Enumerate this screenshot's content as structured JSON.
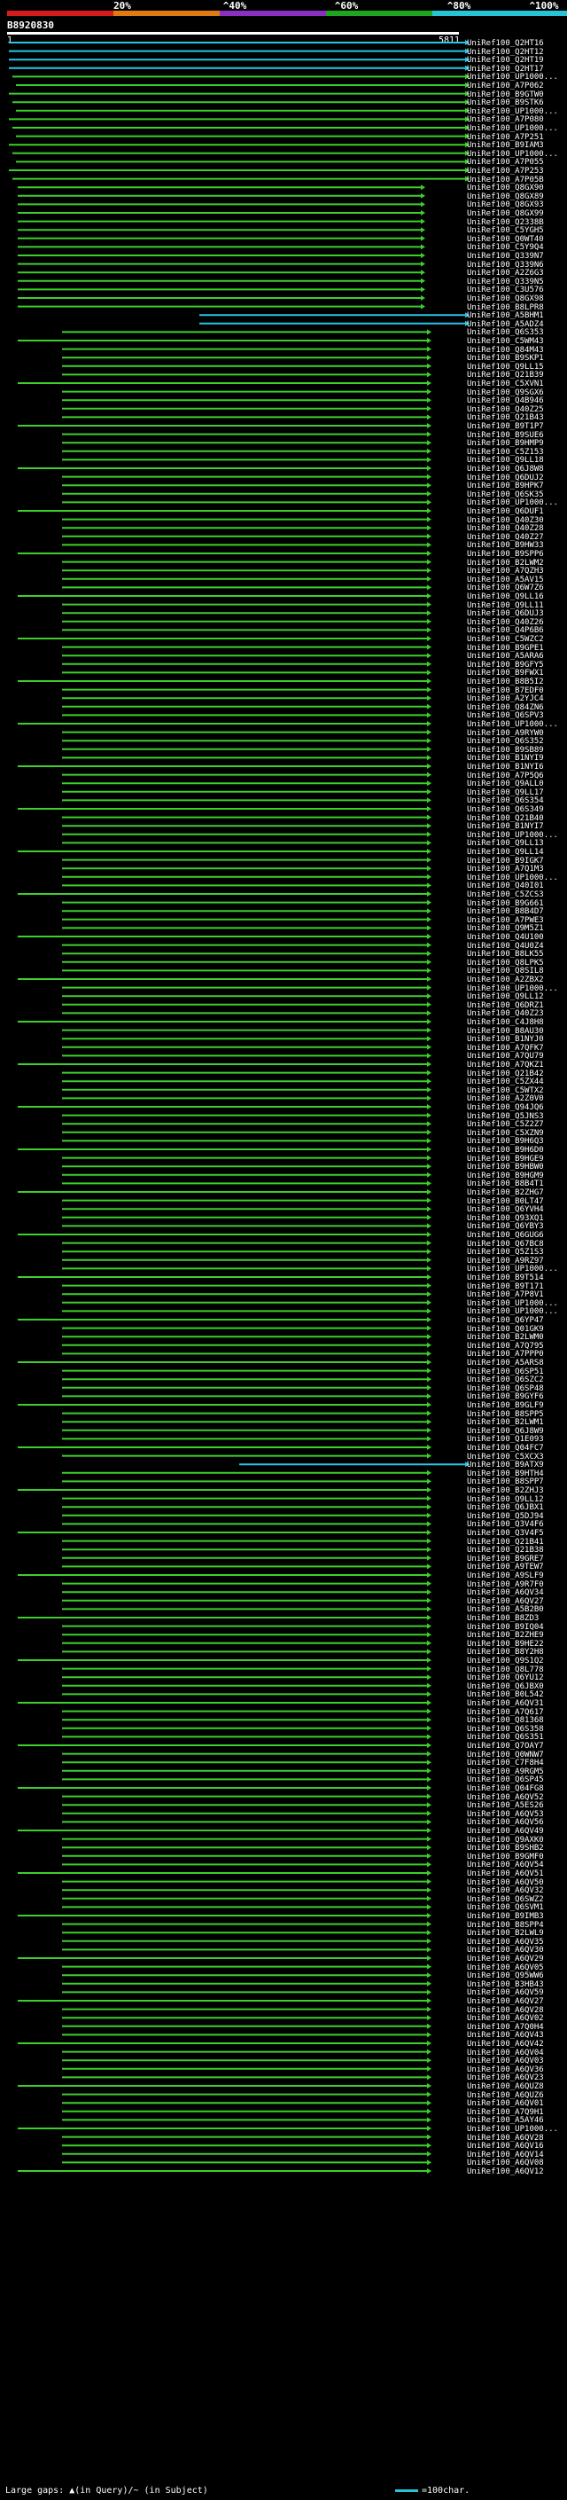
{
  "header": {
    "scale_ticks": [
      "20%",
      "^40%",
      "^60%",
      "^80%",
      "^100%"
    ],
    "scale_colors": [
      "#d51c1c",
      "#e07b14",
      "#8a2fbf",
      "#1fa51f",
      "#27c4d6"
    ],
    "query_id": "B8920830",
    "query_start": "1",
    "query_end": "5811"
  },
  "colors": {
    "hit_green": "#3ecf2c",
    "hit_cyan": "#29c5e8",
    "background": "#000000",
    "query_line": "#ffffff"
  },
  "hit_labels": [
    "UniRef100_Q2HT16",
    "UniRef100_Q2HT12",
    "UniRef100_Q2HT19",
    "UniRef100_Q2HT17",
    "UniRef100_UP1000...",
    "UniRef100_A7P062",
    "UniRef100_B9GTW0",
    "UniRef100_B9STK6",
    "UniRef100_UP1000...",
    "UniRef100_A7P080",
    "UniRef100_UP1000...",
    "UniRef100_A7P251",
    "UniRef100_B9IAM3",
    "UniRef100_UP1000...",
    "UniRef100_A7P055",
    "UniRef100_A7P253",
    "UniRef100_A7P05B",
    "UniRef100_Q8GX90",
    "UniRef100_Q8GX89",
    "UniRef100_Q8GX93",
    "UniRef100_Q8GX99",
    "UniRef100_Q2338B",
    "UniRef100_C5YGH5",
    "UniRef100_Q0WT40",
    "UniRef100_C5Y9Q4",
    "UniRef100_Q339N7",
    "UniRef100_Q339N6",
    "UniRef100_A2Z6G3",
    "UniRef100_Q339N5",
    "UniRef100_C3U576",
    "UniRef100_Q8GX98",
    "UniRef100_B8LPR8",
    "UniRef100_A5BHM1",
    "UniRef100_A5ADZ4",
    "UniRef100_Q6S353",
    "UniRef100_C5WM43",
    "UniRef100_Q84M43",
    "UniRef100_B9SKP1",
    "UniRef100_Q9LL15",
    "UniRef100_Q21B39",
    "UniRef100_C5XVN1",
    "UniRef100_Q9SGX6",
    "UniRef100_Q4B946",
    "UniRef100_Q40Z25",
    "UniRef100_Q21B43",
    "UniRef100_B9T1P7",
    "UniRef100_B9SUE6",
    "UniRef100_B9HMP9",
    "UniRef100_C5Z153",
    "UniRef100_Q9LL18",
    "UniRef100_Q6J8W8",
    "UniRef100_Q6DUJ2",
    "UniRef100_B9HPK7",
    "UniRef100_Q6SK35",
    "UniRef100_UP1000...",
    "UniRef100_Q6DUF1",
    "UniRef100_Q40Z30",
    "UniRef100_Q40Z28",
    "UniRef100_Q40Z27",
    "UniRef100_B9HW33",
    "UniRef100_B9SPP6",
    "UniRef100_B2LWM2",
    "UniRef100_A7QZH3",
    "UniRef100_A5AV15",
    "UniRef100_Q6W7Z6",
    "UniRef100_Q9LL16",
    "UniRef100_Q9LL11",
    "UniRef100_Q6DUJ3",
    "UniRef100_Q40Z26",
    "UniRef100_Q4P6B6",
    "UniRef100_C5WZC2",
    "UniRef100_B9GPE1",
    "UniRef100_A5ARA6",
    "UniRef100_B9GFY5",
    "UniRef100_B9FWX1",
    "UniRef100_B8B5I2",
    "UniRef100_B7EDF0",
    "UniRef100_A2YJC4",
    "UniRef100_Q84ZN6",
    "UniRef100_Q6SPV3",
    "UniRef100_UP1000...",
    "UniRef100_A9RYW0",
    "UniRef100_Q6S352",
    "UniRef100_B9SB89",
    "UniRef100_B1NYI9",
    "UniRef100_B1NYI6",
    "UniRef100_A7P5Q6",
    "UniRef100_Q9ALL0",
    "UniRef100_Q9LL17",
    "UniRef100_Q6S354",
    "UniRef100_Q6S349",
    "UniRef100_Q21B40",
    "UniRef100_B1NYI7",
    "UniRef100_UP1000...",
    "UniRef100_Q9LL13",
    "UniRef100_Q9LL14",
    "UniRef100_B9IGK7",
    "UniRef100_A7Q1M3",
    "UniRef100_UP1000...",
    "UniRef100_Q40I01",
    "UniRef100_C5ZCS3",
    "UniRef100_B9G661",
    "UniRef100_B8B4D7",
    "UniRef100_A7PWE3",
    "UniRef100_Q9M5Z1",
    "UniRef100_Q4U100",
    "UniRef100_Q4U0Z4",
    "UniRef100_B8LK55",
    "UniRef100_Q8LPK5",
    "UniRef100_Q8SIL8",
    "UniRef100_A2ZBX2",
    "UniRef100_UP1000...",
    "UniRef100_Q9LL12",
    "UniRef100_Q6DRZ1",
    "UniRef100_Q40Z23",
    "UniRef100_C4J8H8",
    "UniRef100_B8AU30",
    "UniRef100_B1NYJ0",
    "UniRef100_A7QFK7",
    "UniRef100_A7QU79",
    "UniRef100_A7QKZ1",
    "UniRef100_Q21B42",
    "UniRef100_C5ZX44",
    "UniRef100_C5WTX2",
    "UniRef100_A2Z0V0",
    "UniRef100_Q94JQ6",
    "UniRef100_Q5JNS3",
    "UniRef100_C5Z2Z7",
    "UniRef100_C5XZN9",
    "UniRef100_B9H6Q3",
    "UniRef100_B9H6D0",
    "UniRef100_B9HGE9",
    "UniRef100_B9HBW0",
    "UniRef100_B9HGM9",
    "UniRef100_B8B4T1",
    "UniRef100_B2ZHG7",
    "UniRef100_B0LT47",
    "UniRef100_Q6YVH4",
    "UniRef100_Q93XQ1",
    "UniRef100_Q6YBY3",
    "UniRef100_Q6GUG6",
    "UniRef100_Q67BC8",
    "UniRef100_Q5Z1S3",
    "UniRef100_A9RZ97",
    "UniRef100_UP1000...",
    "UniRef100_B9T514",
    "UniRef100_B9T171",
    "UniRef100_A7P8V1",
    "UniRef100_UP1000...",
    "UniRef100_UP1000...",
    "UniRef100_Q6YP47",
    "UniRef100_Q01GK9",
    "UniRef100_B2LWM0",
    "UniRef100_A7Q795",
    "UniRef100_A7PPP0",
    "UniRef100_A5ARS8",
    "UniRef100_Q6SP51",
    "UniRef100_Q6SZC2",
    "UniRef100_Q6SP48",
    "UniRef100_B9GYF6",
    "UniRef100_B9GLF9",
    "UniRef100_B8SPP5",
    "UniRef100_B2LWM1",
    "UniRef100_Q6J8W9",
    "UniRef100_Q1E093",
    "UniRef100_Q04FC7",
    "UniRef100_C5XCX3",
    "UniRef100_B9ATX9",
    "UniRef100_B9HTH4",
    "UniRef100_B8SPP7",
    "UniRef100_B2ZHJ3",
    "UniRef100_Q9LL12",
    "UniRef100_Q6JBX1",
    "UniRef100_Q5DJ94",
    "UniRef100_Q3V4F6",
    "UniRef100_Q3V4F5",
    "UniRef100_Q21B41",
    "UniRef100_Q21B38",
    "UniRef100_B9GRE7",
    "UniRef100_A9TEW7",
    "UniRef100_A9SLF9",
    "UniRef100_A9R7F0",
    "UniRef100_A6QV34",
    "UniRef100_A6QV27",
    "UniRef100_A5B2B0",
    "UniRef100_B8ZD3",
    "UniRef100_B9IQ04",
    "UniRef100_B2ZHE9",
    "UniRef100_B9HE22",
    "UniRef100_B8Y2H8",
    "UniRef100_Q9S1Q2",
    "UniRef100_Q8L778",
    "UniRef100_Q6YU12",
    "UniRef100_Q6JBX0",
    "UniRef100_B0L542",
    "UniRef100_A6QV31",
    "UniRef100_A7Q617",
    "UniRef100_Q81368",
    "UniRef100_Q6S358",
    "UniRef100_Q6S351",
    "UniRef100_Q7OAY7",
    "UniRef100_Q0WNW7",
    "UniRef100_C7F8H4",
    "UniRef100_A9RGM5",
    "UniRef100_Q6SP45",
    "UniRef100_Q04FG8",
    "UniRef100_A6QV52",
    "UniRef100_A5ES26",
    "UniRef100_A6QV53",
    "UniRef100_A6QV56",
    "UniRef100_A6QV49",
    "UniRef100_Q9AXK0",
    "UniRef100_B9SHB2",
    "UniRef100_B9GMF0",
    "UniRef100_A6QV54",
    "UniRef100_A6QV51",
    "UniRef100_A6QV50",
    "UniRef100_A6QV32",
    "UniRef100_Q6SWZ2",
    "UniRef100_Q6SVM1",
    "UniRef100_B9IMB3",
    "UniRef100_B8SPP4",
    "UniRef100_B2LWL9",
    "UniRef100_A6QV35",
    "UniRef100_A6QV30",
    "UniRef100_A6QV29",
    "UniRef100_A6QV05",
    "UniRef100_Q95WW6",
    "UniRef100_B3HB43",
    "UniRef100_A6QV59",
    "UniRef100_A6QV27",
    "UniRef100_A6QV28",
    "UniRef100_A6QV02",
    "UniRef100_A7Q0H4",
    "UniRef100_A6QV43",
    "UniRef100_A6QV42",
    "UniRef100_A6QV04",
    "UniRef100_A6QV03",
    "UniRef100_A6QV36",
    "UniRef100_A6QV23",
    "UniRef100_A6QUZ8",
    "UniRef100_A6QUZ6",
    "UniRef100_A6QV01",
    "UniRef100_A7Q9H1",
    "UniRef100_A5AY46",
    "UniRef100_UP1000...",
    "UniRef100_A6QV28",
    "UniRef100_A6QV16",
    "UniRef100_A6QV14",
    "UniRef100_A6QV08",
    "UniRef100_A6QV12"
  ],
  "legend": {
    "left_text": "Large gaps: ▲(in Query)/~ (in Subject)",
    "right_text": "=100char."
  }
}
